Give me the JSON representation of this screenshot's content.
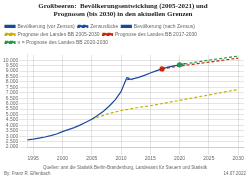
{
  "chart_data": {
    "type": "line",
    "title": "Großbeeren:  Bevölkerungsentwicklung (2005-2021) und\nPrognosen (bis 2030) in den aktuellen Grenzen",
    "annotations": [
      "By: Franz R. Effenbach",
      "Quellen: amt die Statistik Berlin-Brandenburg, Landesamt für Steuern und Statistik",
      "14.07.2022"
    ],
    "xlim": [
      1994,
      2031
    ],
    "xticks": [
      1995,
      2000,
      2005,
      2010,
      2015,
      2020,
      2025,
      2030
    ],
    "ylim": [
      2000,
      10500
    ],
    "yticks": [
      {
        "value": 2000,
        "label": "2.000"
      },
      {
        "value": 2500,
        "label": "2.500"
      },
      {
        "value": 3000,
        "label": "3.000"
      },
      {
        "value": 3500,
        "label": "3.500"
      },
      {
        "value": 4000,
        "label": "4.000"
      },
      {
        "value": 4500,
        "label": "4.500"
      },
      {
        "value": 5000,
        "label": "5.000"
      },
      {
        "value": 5500,
        "label": "5.500"
      },
      {
        "value": 6000,
        "label": "6.000"
      },
      {
        "value": 6500,
        "label": "6.500"
      },
      {
        "value": 7000,
        "label": "7.000"
      },
      {
        "value": 7500,
        "label": "7.500"
      },
      {
        "value": 8000,
        "label": "8.000"
      },
      {
        "value": 8500,
        "label": "8.500"
      },
      {
        "value": 9000,
        "label": "9.000"
      },
      {
        "value": 9500,
        "label": "9.500"
      },
      {
        "value": 10000,
        "label": "10.000"
      }
    ],
    "grid": true,
    "legend": "upper left",
    "series": [
      {
        "name": "Bevölkerung (vor Zensus)",
        "color": "#1a4a9e",
        "line_style": "solid",
        "x": [
          1994,
          1995,
          1996,
          1997,
          1998,
          1999,
          2000,
          2001,
          2002,
          2003,
          2004,
          2005,
          2006,
          2007,
          2008,
          2009,
          2010,
          2011
        ],
        "values": [
          2650,
          2720,
          2820,
          2920,
          3050,
          3200,
          3420,
          3600,
          3790,
          4020,
          4280,
          4560,
          4900,
          5300,
          5780,
          6350,
          7100,
          8400
        ]
      },
      {
        "name": "Zensuslücke",
        "color": "#1a4a9e",
        "line_style": "dashed",
        "x": [
          2011,
          2012
        ],
        "values": [
          8400,
          8200
        ]
      },
      {
        "name": "Bevölkerung (nach Zensus)",
        "color": "#1a4a9e",
        "line_style": "solid",
        "x": [
          2011,
          2012,
          2013,
          2014,
          2015,
          2016,
          2017,
          2018,
          2019,
          2020,
          2021
        ],
        "values": [
          8200,
          8280,
          8420,
          8600,
          8820,
          9020,
          9200,
          9370,
          9480,
          9580,
          9700
        ]
      },
      {
        "name": "Prognose des Landes BB 2005-2030",
        "color": "#c8b000",
        "line_style": "dashed",
        "x": [
          2005,
          2008,
          2010,
          2013,
          2015,
          2018,
          2020,
          2023,
          2025,
          2028,
          2030
        ],
        "values": [
          4560,
          5100,
          5350,
          5650,
          5800,
          6100,
          6300,
          6600,
          6800,
          7100,
          7300
        ]
      },
      {
        "name": "Prognose des Landes BB 2017-2030",
        "color": "#cc2200",
        "line_style": "dashed",
        "x": [
          2017,
          2019,
          2021,
          2023,
          2025,
          2027,
          2030
        ],
        "values": [
          9200,
          9380,
          9530,
          9680,
          9820,
          9970,
          10200
        ]
      },
      {
        "name": "n = Prognose des Landes BB 2020-2030",
        "color": "#229944",
        "line_style": "dashed",
        "x": [
          2020,
          2022,
          2024,
          2026,
          2028,
          2030
        ],
        "values": [
          9580,
          9750,
          9920,
          10080,
          10230,
          10380
        ]
      },
      {
        "type": "scatter",
        "marker": "circle",
        "color": "#cc2200",
        "x": [
          2017
        ],
        "values": [
          9200
        ]
      },
      {
        "type": "scatter",
        "marker": "circle",
        "color": "#229944",
        "x": [
          2020
        ],
        "values": [
          9580
        ]
      }
    ]
  }
}
